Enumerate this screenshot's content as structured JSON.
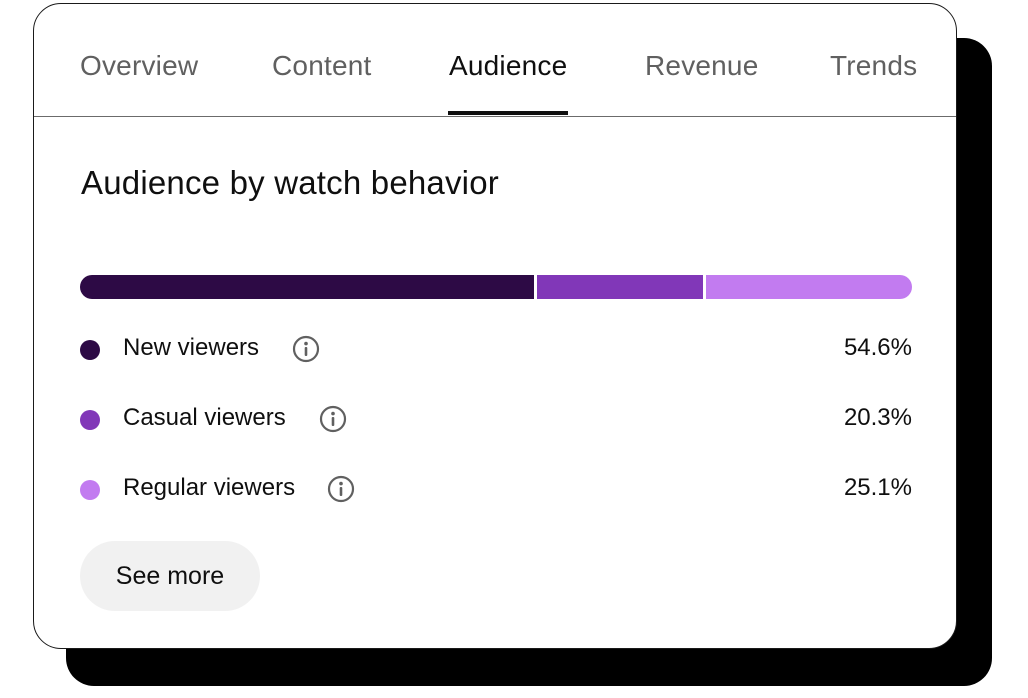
{
  "tabs": [
    {
      "label": "Overview",
      "active": false
    },
    {
      "label": "Content",
      "active": false
    },
    {
      "label": "Audience",
      "active": true
    },
    {
      "label": "Revenue",
      "active": false
    },
    {
      "label": "Trends",
      "active": false
    }
  ],
  "section": {
    "title": "Audience by watch behavior"
  },
  "segments": [
    {
      "label": "New viewers",
      "value": "54.6%",
      "share": 54.6,
      "color": "#2d0a45"
    },
    {
      "label": "Casual viewers",
      "value": "20.3%",
      "share": 20.3,
      "color": "#8137b8"
    },
    {
      "label": "Regular viewers",
      "value": "25.1%",
      "share": 25.1,
      "color": "#c27bf0"
    }
  ],
  "icons": {
    "info": "info-icon"
  },
  "actions": {
    "see_more_label": "See more"
  }
}
